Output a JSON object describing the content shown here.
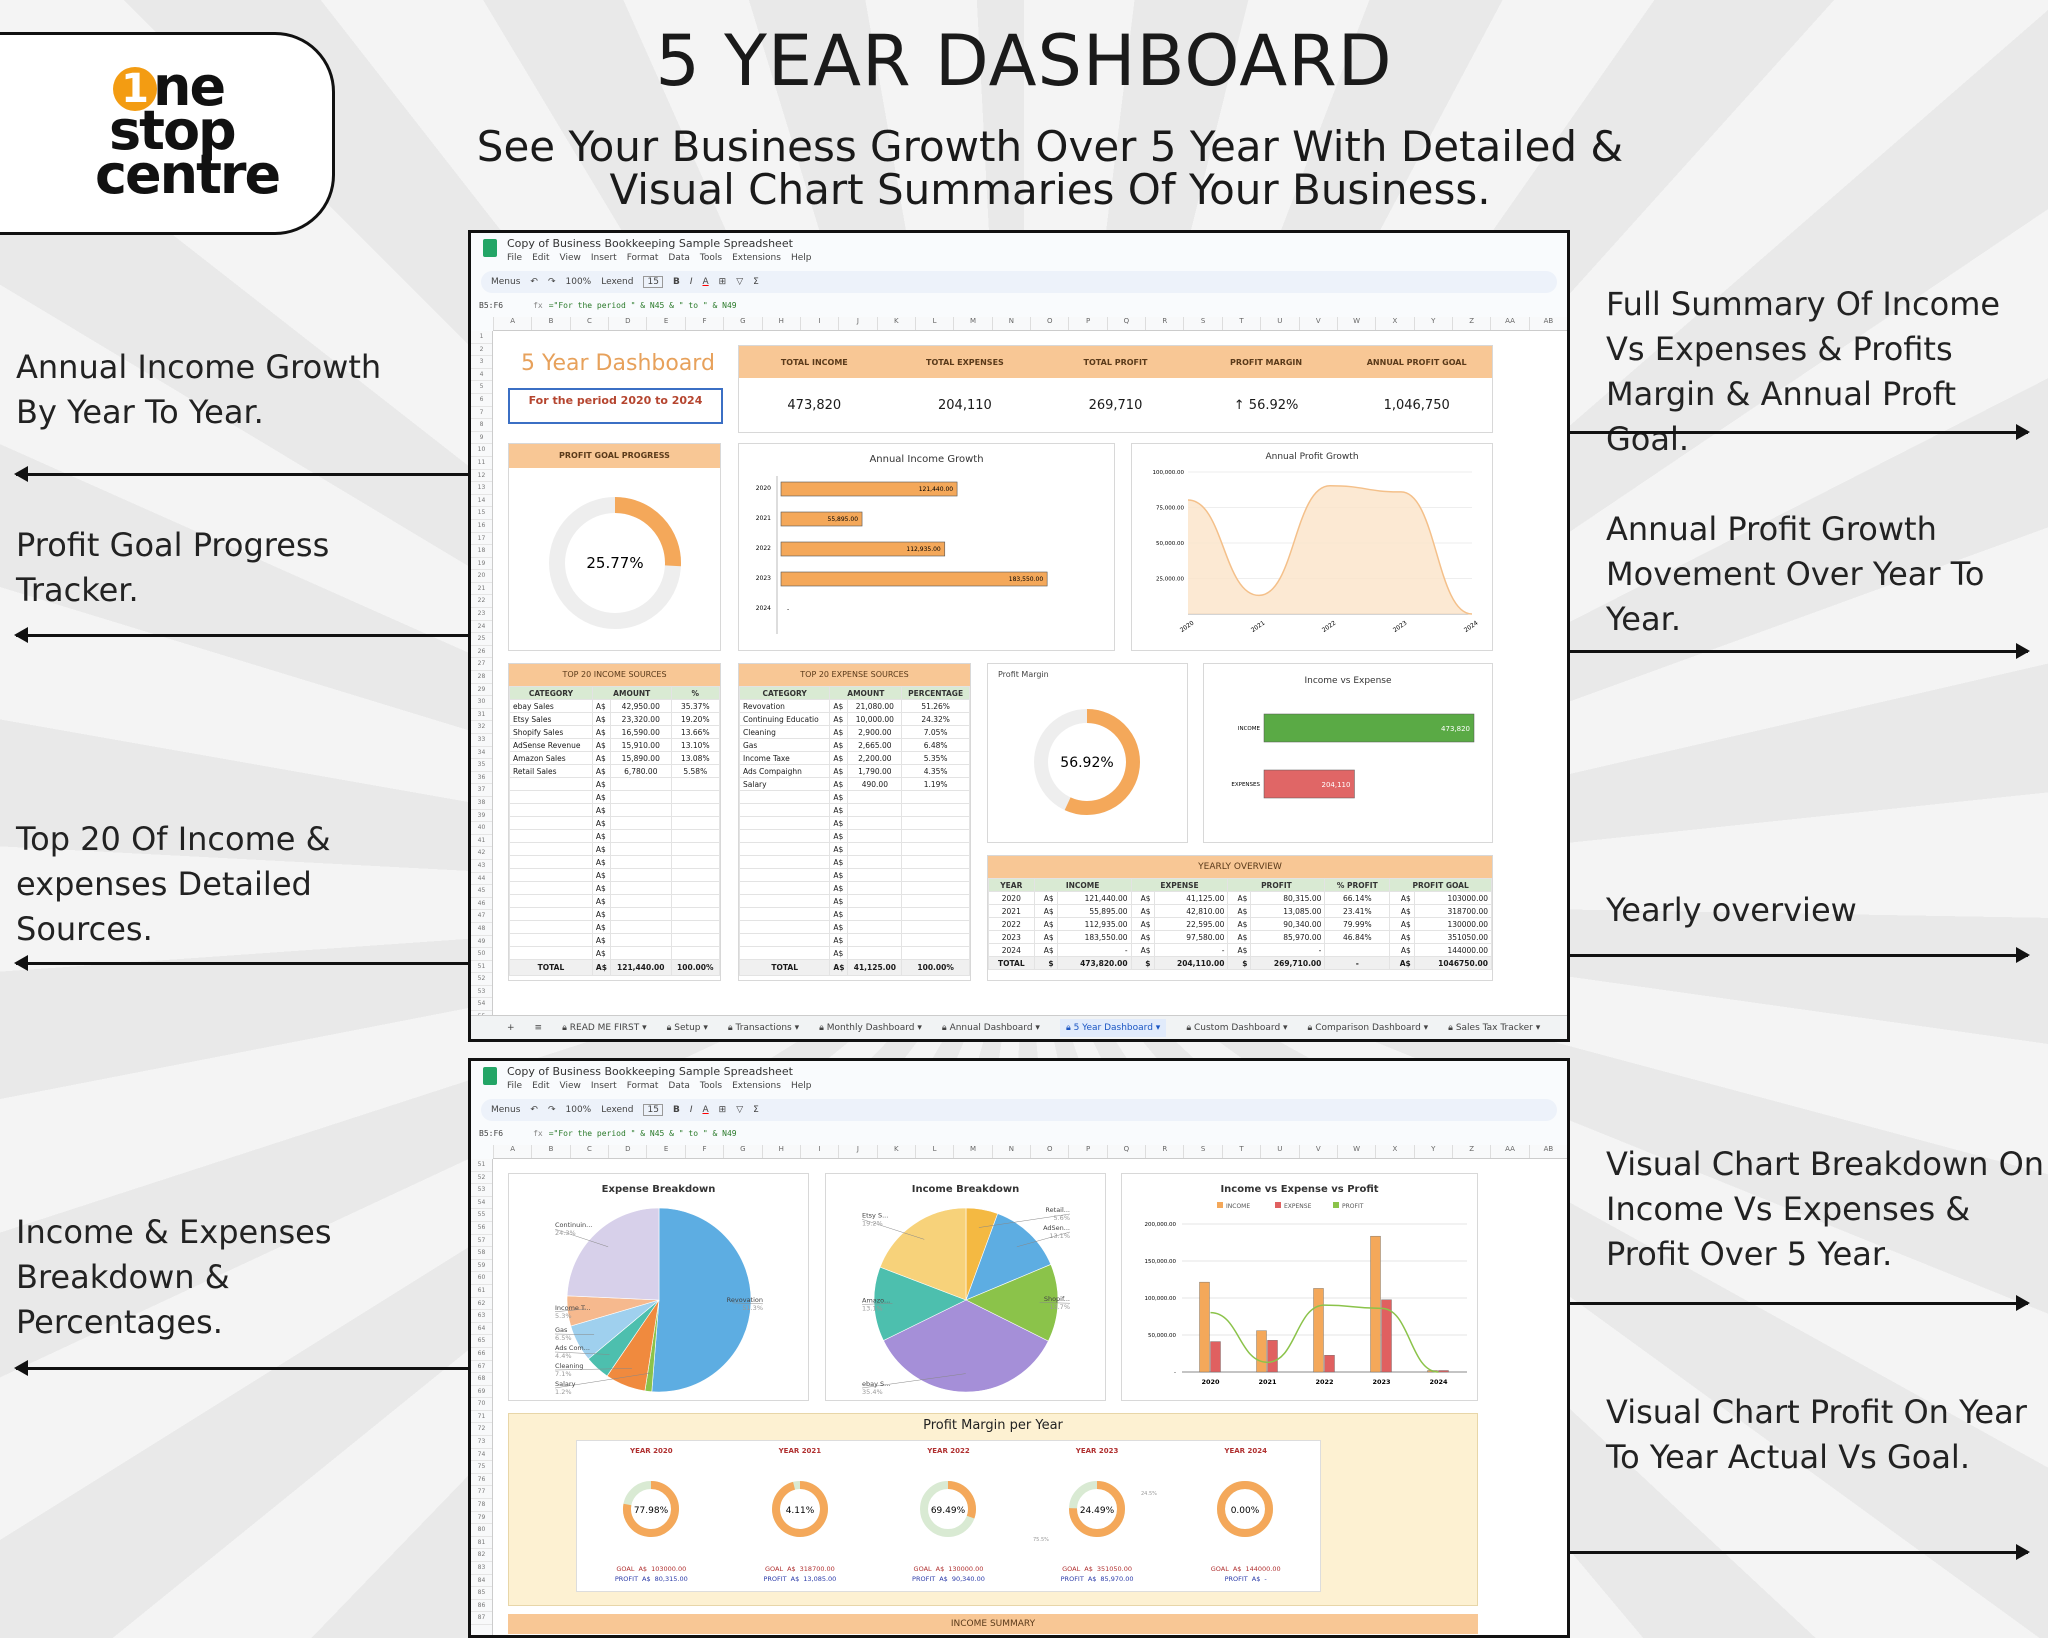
{
  "logo": {
    "text": "1ne stop centre",
    "accent": "#f39c12"
  },
  "title": "5 YEAR DASHBOARD",
  "subtitle": [
    "See Your Business Growth Over 5 Year With Detailed &",
    "Visual Chart Summaries Of Your Business."
  ],
  "left_annotations": [
    "Annual Income Growth By Year To Year.",
    "Profit Goal Progress Tracker.",
    "Top 20 Of Income & expenses Detailed Sources.",
    "Income & Expenses Breakdown & Percentages."
  ],
  "right_annotations": [
    "Full Summary Of Income Vs Expenses & Profits Margin & Annual Proft Goal.",
    "Annual Profit Growth Movement Over Year To Year.",
    "Yearly overview",
    "Visual Chart Breakdown On Income Vs Expenses & Profit Over 5 Year.",
    "Visual Chart Profit On Year To Year Actual Vs Goal."
  ],
  "spreadsheet": {
    "doc_title": "Copy of Business Bookkeeping Sample Spreadsheet",
    "menu": [
      "File",
      "Edit",
      "View",
      "Insert",
      "Format",
      "Data",
      "Tools",
      "Extensions",
      "Help"
    ],
    "toolbar": {
      "search": "Menus",
      "zoom": "100%",
      "font": "Lexend",
      "font_size": "15"
    },
    "cell_ref": "B5:F6",
    "formula": "=\"For the period \" & N45 & \" to \" & N49",
    "columns": [
      "A",
      "B",
      "C",
      "D",
      "E",
      "F",
      "G",
      "H",
      "I",
      "J",
      "K",
      "L",
      "M",
      "N",
      "O",
      "P",
      "Q",
      "R",
      "S",
      "T",
      "U",
      "V",
      "W",
      "X",
      "Y",
      "Z",
      "AA",
      "AB"
    ],
    "tabs": [
      "READ ME FIRST",
      "Setup",
      "Transactions",
      "Monthly Dashboard",
      "Annual Dashboard",
      "5 Year Dashboard",
      "Custom Dashboard",
      "Comparison Dashboard",
      "Sales Tax Tracker"
    ],
    "active_tab": "5 Year Dashboard"
  },
  "dashboard": {
    "title": "5 Year Dashboard",
    "period": "For the period 2020 to 2024",
    "kpis": [
      {
        "label": "TOTAL INCOME",
        "value": "473,820"
      },
      {
        "label": "TOTAL EXPENSES",
        "value": "204,110"
      },
      {
        "label": "TOTAL PROFIT",
        "value": "269,710"
      },
      {
        "label": "PROFIT MARGIN",
        "value": "↑ 56.92%"
      },
      {
        "label": "ANNUAL PROFIT GOAL",
        "value": "1,046,750"
      }
    ],
    "profit_goal": {
      "title": "PROFIT GOAL PROGRESS",
      "label": "25.77%",
      "fraction": 0.2577
    },
    "profit_margin": {
      "title": "Profit Margin",
      "label": "56.92%",
      "fraction": 0.5692
    },
    "income_vs_expense": {
      "title": "Income vs Expense",
      "categories": [
        "INCOME",
        "EXPENSES"
      ],
      "values": [
        473820,
        204110
      ],
      "labels": [
        "473,820",
        "204,110"
      ],
      "colors": [
        "#5aaa45",
        "#e06666"
      ]
    },
    "income_table": {
      "title": "TOP 20 INCOME SOURCES",
      "headers": [
        "CATEGORY",
        "AMOUNT",
        "%"
      ],
      "currency": "A$",
      "rows": [
        [
          "ebay Sales",
          "42,950.00",
          "35.37%"
        ],
        [
          "Etsy Sales",
          "23,320.00",
          "19.20%"
        ],
        [
          "Shopify Sales",
          "16,590.00",
          "13.66%"
        ],
        [
          "AdSense Revenue",
          "15,910.00",
          "13.10%"
        ],
        [
          "Amazon Sales",
          "15,890.00",
          "13.08%"
        ],
        [
          "Retail Sales",
          "6,780.00",
          "5.58%"
        ]
      ],
      "total": [
        "TOTAL",
        "A$",
        "121,440.00",
        "100.00%"
      ]
    },
    "expense_table": {
      "title": "TOP 20 EXPENSE SOURCES",
      "headers": [
        "CATEGORY",
        "AMOUNT",
        "PERCENTAGE"
      ],
      "currency": "A$",
      "rows": [
        [
          "Revovation",
          "21,080.00",
          "51.26%"
        ],
        [
          "Continuing Educatio",
          "10,000.00",
          "24.32%"
        ],
        [
          "Cleaning",
          "2,900.00",
          "7.05%"
        ],
        [
          "Gas",
          "2,665.00",
          "6.48%"
        ],
        [
          "Income Taxe",
          "2,200.00",
          "5.35%"
        ],
        [
          "Ads Compaighn",
          "1,790.00",
          "4.35%"
        ],
        [
          "Salary",
          "490.00",
          "1.19%"
        ]
      ],
      "total": [
        "TOTAL",
        "A$",
        "41,125.00",
        "100.00%"
      ]
    },
    "yearly": {
      "title": "YEARLY OVERVIEW",
      "headers": [
        "YEAR",
        "INCOME",
        "EXPENSE",
        "PROFIT",
        "% PROFIT",
        "PROFIT GOAL"
      ],
      "rows": [
        [
          "2020",
          "A$",
          "121,440.00",
          "A$",
          "41,125.00",
          "A$",
          "80,315.00",
          "66.14%",
          "A$",
          "103000.00"
        ],
        [
          "2021",
          "A$",
          "55,895.00",
          "A$",
          "42,810.00",
          "A$",
          "13,085.00",
          "23.41%",
          "A$",
          "318700.00"
        ],
        [
          "2022",
          "A$",
          "112,935.00",
          "A$",
          "22,595.00",
          "A$",
          "90,340.00",
          "79.99%",
          "A$",
          "130000.00"
        ],
        [
          "2023",
          "A$",
          "183,550.00",
          "A$",
          "97,580.00",
          "A$",
          "85,970.00",
          "46.84%",
          "A$",
          "351050.00"
        ],
        [
          "2024",
          "A$",
          "-",
          "A$",
          "-",
          "A$",
          "-",
          "",
          "A$",
          "144000.00"
        ]
      ],
      "total": [
        "TOTAL",
        "$",
        "473,820.00",
        "$",
        "204,110.00",
        "$",
        "269,710.00",
        "-",
        "A$",
        "1046750.00"
      ]
    },
    "profit_margin_per_year": {
      "title": "Profit Margin per Year",
      "goal_label": "GOAL",
      "profit_label": "PROFIT",
      "currency": "A$",
      "years": [
        {
          "label": "YEAR 2020",
          "value": "77.98%",
          "orange": 0.78,
          "goal": "103000.00",
          "profit": "80,315.00"
        },
        {
          "label": "YEAR 2021",
          "value": "4.11%",
          "orange": 0.96,
          "goal": "318700.00",
          "profit": "13,085.00"
        },
        {
          "label": "YEAR 2022",
          "value": "69.49%",
          "orange": 0.305,
          "goal": "130000.00",
          "profit": "90,340.00"
        },
        {
          "label": "YEAR 2023",
          "value": "24.49%",
          "orange": 0.755,
          "goal": "351050.00",
          "profit": "85,970.00",
          "slice_labels": [
            "24.5%",
            "75.5%"
          ]
        },
        {
          "label": "YEAR 2024",
          "value": "0.00%",
          "orange": 1.0,
          "goal": "144000.00",
          "profit": "-"
        }
      ]
    },
    "income_summary": "INCOME SUMMARY"
  },
  "chart_data": [
    {
      "type": "bar",
      "orientation": "horizontal",
      "title": "Annual Income Growth",
      "categories": [
        "2020",
        "2021",
        "2022",
        "2023",
        "2024"
      ],
      "values": [
        121440,
        55895,
        112935,
        183550,
        0
      ],
      "labels": [
        "121,440.00",
        "55,895.00",
        "112,935.00",
        "183,550.00",
        "-"
      ],
      "color": "#f4a85a"
    },
    {
      "type": "area",
      "title": "Annual Profit Growth",
      "x": [
        "2020",
        "2021",
        "2022",
        "2023",
        "2024"
      ],
      "y": [
        80315,
        13085,
        90340,
        85970,
        0
      ],
      "yticks": [
        "25,000.00",
        "50,000.00",
        "75,000.00",
        "100,000.00"
      ],
      "ylim": [
        0,
        100000
      ],
      "color": "#f4c08a"
    },
    {
      "type": "pie",
      "title": "Expense Breakdown",
      "categories": [
        "Revovation",
        "Salary",
        "Cleaning",
        "Ads Com...",
        "Gas",
        "Income T...",
        "Continuin..."
      ],
      "values": [
        51.3,
        1.2,
        7.1,
        4.4,
        6.5,
        5.3,
        24.3
      ],
      "labels": [
        "51.3%",
        "1.2%",
        "7.1%",
        "4.4%",
        "6.5%",
        "5.3%",
        "24.3%"
      ],
      "colors": [
        "#5dade2",
        "#8bc34a",
        "#f08a3e",
        "#4dbfae",
        "#9fd0ee",
        "#f6b98e",
        "#d7d0ea"
      ]
    },
    {
      "type": "pie",
      "title": "Income Breakdown",
      "categories": [
        "Retail...",
        "AdSen...",
        "Shopif...",
        "ebay S...",
        "Amazo...",
        "Etsy S..."
      ],
      "values": [
        5.6,
        13.1,
        13.7,
        35.4,
        13.1,
        19.2
      ],
      "labels": [
        "5.6%",
        "13.1%",
        "13.7%",
        "35.4%",
        "13.1%",
        "19.2%"
      ],
      "colors": [
        "#f4b942",
        "#5dade2",
        "#8bc34a",
        "#a58fd8",
        "#4dbfae",
        "#f7d27a"
      ]
    },
    {
      "type": "bar+line",
      "title": "Income vs Expense vs Profit",
      "categories": [
        "2020",
        "2021",
        "2022",
        "2023",
        "2024"
      ],
      "series": [
        {
          "name": "INCOME",
          "values": [
            121440,
            55895,
            112935,
            183550,
            0
          ],
          "color": "#f4a85a"
        },
        {
          "name": "EXPENSE",
          "values": [
            41125,
            42810,
            22595,
            97580,
            0
          ],
          "color": "#e06060"
        },
        {
          "name": "PROFIT",
          "values": [
            80315,
            13085,
            90340,
            85970,
            0
          ],
          "color": "#8bc34a"
        }
      ],
      "yticks": [
        "-",
        "50,000.00",
        "100,000.00",
        "150,000.00",
        "200,000.00"
      ],
      "ylim": [
        0,
        200000
      ],
      "legend": "top"
    }
  ]
}
